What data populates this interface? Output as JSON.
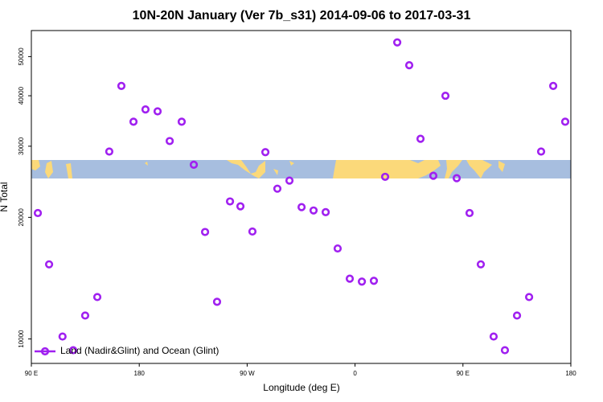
{
  "chart_data": {
    "type": "scatter",
    "title": "10N-20N January (Ver 7b_s31)   2014-09-06 to 2017-03-31",
    "x_label": "Longitude (deg E)",
    "y_label": "N Total",
    "log_y": true,
    "legend": "bottom-left",
    "xlim": [
      90,
      540
    ],
    "ylim": [
      8700,
      58000
    ],
    "xticks": [
      {
        "value": 90,
        "label": "90 E"
      },
      180,
      {
        "value": 270,
        "label": "90 W"
      },
      {
        "value": 360,
        "label": "0"
      },
      {
        "value": 450,
        "label": "90 E"
      },
      {
        "value": 540,
        "label": "180"
      }
    ],
    "yticks": [
      10000,
      20000,
      30000,
      40000,
      50000
    ],
    "series": [
      {
        "name": "Land (Nadir&Glint) and Ocean (Glint)",
        "color": "#a020f0",
        "x": [
          95.4,
          104.8,
          116,
          124.9,
          134.9,
          145,
          155,
          165.1,
          175.2,
          185.2,
          195.3,
          205.4,
          215.4,
          225.5,
          234.9,
          244.9,
          255.7,
          264.4,
          274.4,
          285.2,
          295.2,
          305.3,
          315.4,
          325.4,
          335.5,
          345.5,
          355.6,
          365.7,
          375.7,
          385.1,
          395.2,
          405.2,
          414.6,
          425.3,
          435.4,
          444.8,
          455.5,
          464.9,
          475.6,
          485,
          495.1,
          505.2,
          515.2,
          525.3,
          535.3
        ],
        "values": [
          20500,
          15300,
          10140,
          9380,
          11430,
          12700,
          29100,
          42300,
          34500,
          37000,
          36600,
          30900,
          34500,
          27000,
          18400,
          12360,
          21900,
          21300,
          18450,
          29000,
          23550,
          24660,
          21200,
          20800,
          20600,
          16750,
          14100,
          13870,
          13930,
          25200,
          54200,
          47600,
          31300,
          25350,
          40000,
          25000,
          20500,
          15300,
          10140,
          9380,
          11430,
          12700,
          29100,
          42300,
          34500
        ]
      }
    ]
  }
}
